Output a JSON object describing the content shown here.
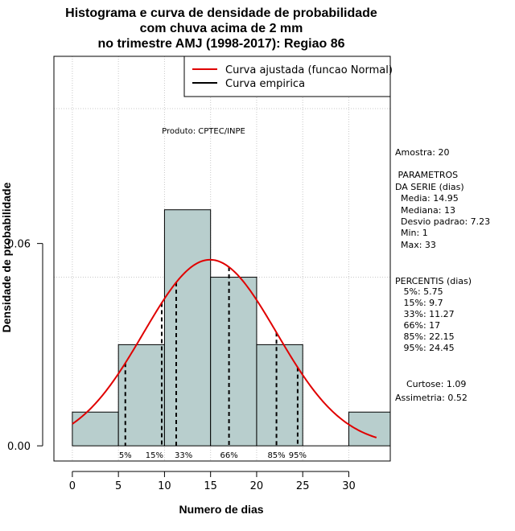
{
  "chart_data": {
    "type": "bar",
    "title_lines": [
      "Histograma e curva de densidade de probabilidade",
      "com chuva acima de 2 mm",
      "no trimestre AMJ (1998-2017): Regiao 86"
    ],
    "xlabel": "Numero de dias",
    "ylabel": "Densidade de probabilidade",
    "xlim": [
      -2,
      34.5
    ],
    "ylim": [
      -0.0045,
      0.1155
    ],
    "x_ticks": [
      "0",
      "5",
      "10",
      "15",
      "20",
      "25",
      "30"
    ],
    "x_tick_values": [
      0,
      5,
      10,
      15,
      20,
      25,
      30
    ],
    "y_ticks": [
      "0.00",
      "0.06"
    ],
    "y_tick_values": [
      0.0,
      0.06
    ],
    "grid": true,
    "gridline_y_values": [
      0.05,
      0.1
    ],
    "bin_edges": [
      0,
      5,
      10,
      15,
      20,
      25,
      30,
      35
    ],
    "densities": [
      0.01,
      0.03,
      0.07,
      0.05,
      0.03,
      0.0,
      0.01
    ],
    "bar_fill": "#b8cecd",
    "normal_curve": {
      "mean": 14.95,
      "sd": 7.23,
      "x_from": 0,
      "x_to": 33,
      "color": "#e00000"
    },
    "legend": {
      "position": "top-right",
      "entries": [
        {
          "label": "Curva ajustada (funcao Normal)",
          "color": "#e00000"
        },
        {
          "label": "Curva empirica",
          "color": "#000000"
        }
      ]
    },
    "credit": "Produto: CPTEC/INPE",
    "percentile_markers": [
      {
        "label": "5%",
        "value": 5.75
      },
      {
        "label": "15%",
        "value": 9.7
      },
      {
        "label": "33%",
        "value": 11.27
      },
      {
        "label": "66%",
        "value": 17
      },
      {
        "label": "85%",
        "value": 22.15
      },
      {
        "label": "95%",
        "value": 24.45
      }
    ],
    "stats_panel": [
      "Amostra: 20",
      " PARAMETROS",
      "DA SERIE (dias)",
      "  Media: 14.95",
      "  Mediana: 13",
      "  Desvio padrao: 7.23",
      "  Min: 1",
      "  Max: 33",
      "PERCENTIS (dias)",
      "   5%: 5.75",
      "   15%: 9.7",
      "   33%: 11.27",
      "   66%: 17",
      "   85%: 22.15",
      "   95%: 24.45",
      "    Curtose: 1.09",
      "Assimetria: 0.52"
    ]
  }
}
